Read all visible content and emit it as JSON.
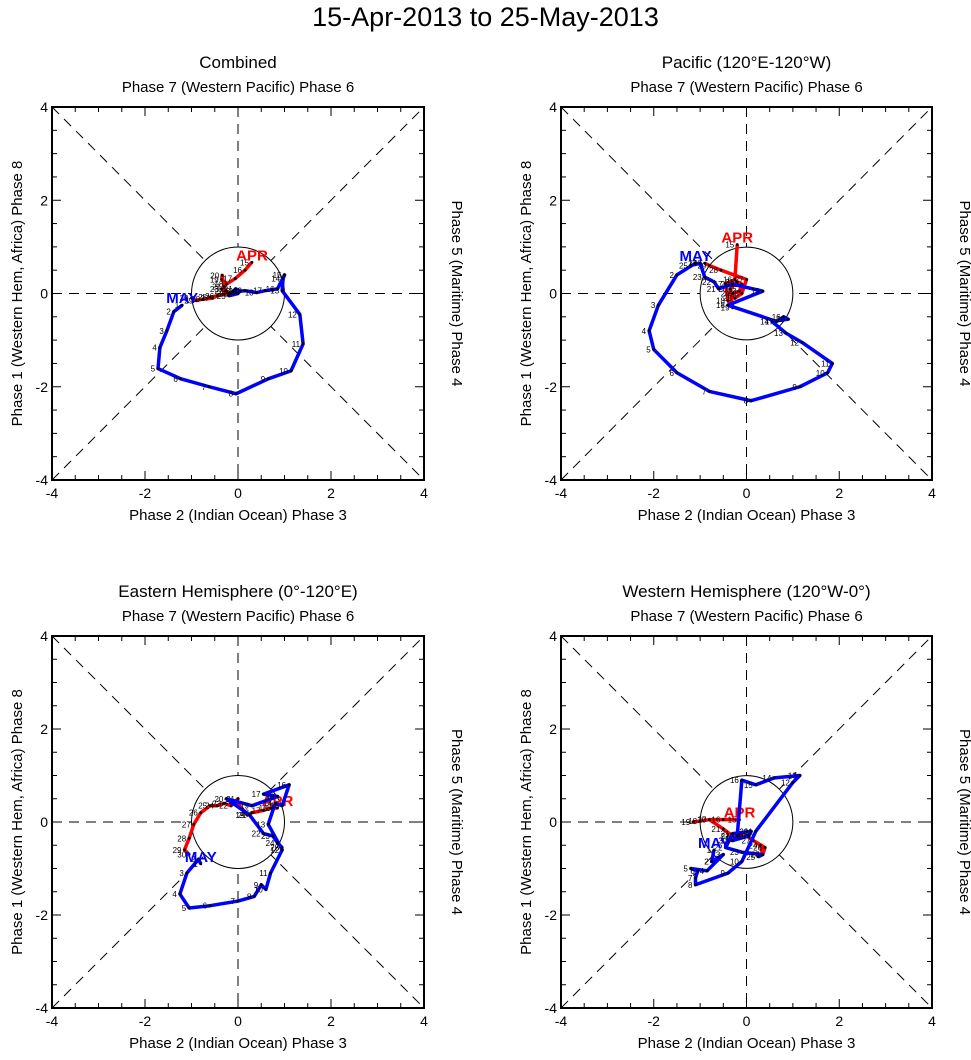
{
  "title": "15-Apr-2013 to 25-May-2013",
  "chart_data": [
    {
      "type": "line",
      "title": "Combined",
      "top_label": "Phase 7 (Western Pacific) Phase 6",
      "bottom_label": "Phase 2 (Indian Ocean) Phase 3",
      "left_label": "Phase 1 (Western Hem, Africa) Phase 8",
      "right_label": "Phase 5 (Maritime) Phase 4",
      "xlim": [
        -4,
        4
      ],
      "ylim": [
        -4,
        4
      ],
      "xticks": [
        "-4",
        "-2",
        "0",
        "2",
        "4"
      ],
      "yticks": [
        "-4",
        "-2",
        "0",
        "2",
        "4"
      ],
      "series": [
        {
          "name": "APR",
          "color": "#ff0000",
          "days": [
            15,
            16,
            17,
            18,
            19,
            20,
            21,
            22,
            23,
            24,
            25,
            26,
            27,
            28,
            29,
            30
          ],
          "x": [
            0.3,
            0.15,
            -0.06,
            -0.25,
            -0.35,
            -0.34,
            -0.3,
            -0.25,
            -0.35,
            -0.2,
            -0.6,
            -0.45,
            -0.55,
            -0.75,
            -0.9,
            -1.0
          ],
          "y": [
            0.67,
            0.5,
            0.32,
            0.2,
            0.3,
            0.39,
            0.15,
            0.05,
            0.1,
            0.0,
            -0.08,
            -0.05,
            -0.1,
            -0.12,
            -0.15,
            -0.1
          ]
        },
        {
          "name": "MAY",
          "color": "#0000ff",
          "days": [
            1,
            2,
            3,
            4,
            5,
            6,
            7,
            8,
            9,
            10,
            11,
            12,
            13,
            14,
            15,
            16,
            17,
            18,
            19,
            20,
            21,
            22,
            23,
            24,
            25
          ],
          "x": [
            -1.2,
            -1.38,
            -1.53,
            -1.68,
            -1.72,
            -1.23,
            -0.62,
            -0.04,
            0.65,
            1.14,
            1.4,
            1.33,
            0.95,
            0.97,
            1.0,
            0.85,
            0.58,
            0.4,
            0.15,
            0.05,
            -0.05,
            -0.15,
            -0.1,
            0.0,
            -0.2
          ],
          "y": [
            -0.25,
            -0.39,
            -0.8,
            -1.16,
            -1.61,
            -1.83,
            -2.0,
            -2.15,
            -1.83,
            -1.66,
            -1.08,
            -0.45,
            0.06,
            0.32,
            0.4,
            0.1,
            0.06,
            0.02,
            0.06,
            0.05,
            0.1,
            0.0,
            0.05,
            0.0,
            -0.05
          ]
        }
      ]
    },
    {
      "type": "line",
      "title": "Pacific (120°E-120°W)",
      "top_label": "Phase 7 (Western Pacific) Phase 6",
      "bottom_label": "Phase 2 (Indian Ocean) Phase 3",
      "left_label": "Phase 1 (Western Hem, Africa) Phase 8",
      "right_label": "Phase 5 (Maritime) Phase 4",
      "xlim": [
        -4,
        4
      ],
      "ylim": [
        -4,
        4
      ],
      "xticks": [
        "-4",
        "-2",
        "0",
        "2",
        "4"
      ],
      "yticks": [
        "-4",
        "-2",
        "0",
        "2",
        "4"
      ],
      "series": [
        {
          "name": "APR",
          "color": "#ff0000",
          "days": [
            15,
            16,
            17,
            18,
            19,
            20,
            21,
            22,
            23,
            24,
            25,
            26,
            27,
            28,
            29,
            30
          ],
          "x": [
            -0.2,
            -0.25,
            -0.45,
            -0.4,
            -0.3,
            -0.35,
            -0.2,
            -0.1,
            -0.15,
            -0.3,
            -0.25,
            -0.1,
            0.0,
            -0.55,
            -0.8,
            -0.9
          ],
          "y": [
            1.05,
            0.3,
            0.2,
            -0.15,
            -0.3,
            0.1,
            0.25,
            0.2,
            0.05,
            0.0,
            -0.1,
            0.0,
            0.3,
            0.5,
            0.6,
            0.65
          ]
        },
        {
          "name": "MAY",
          "color": "#0000ff",
          "days": [
            1,
            2,
            3,
            4,
            5,
            6,
            7,
            8,
            9,
            10,
            11,
            12,
            13,
            14,
            15,
            16,
            17,
            18,
            19,
            20,
            21,
            22,
            23,
            24,
            25
          ],
          "x": [
            -1.1,
            -1.5,
            -1.9,
            -2.1,
            -2.0,
            -1.5,
            -0.8,
            0.1,
            1.15,
            1.75,
            1.85,
            1.2,
            0.85,
            0.55,
            0.9,
            0.8,
            0.65,
            -0.4,
            0.35,
            -0.3,
            -0.6,
            -0.7,
            -0.9,
            -1.0,
            -1.2
          ],
          "y": [
            0.65,
            0.4,
            -0.25,
            -0.8,
            -1.2,
            -1.7,
            -2.1,
            -2.3,
            -2.0,
            -1.7,
            -1.5,
            -1.05,
            -0.85,
            -0.6,
            -0.55,
            -0.5,
            -0.6,
            -0.25,
            0.05,
            0.2,
            0.1,
            0.25,
            0.35,
            0.65,
            0.6
          ]
        }
      ]
    },
    {
      "type": "line",
      "title": "Eastern Hemisphere (0°-120°E)",
      "top_label": "Phase 7 (Western Pacific) Phase 6",
      "bottom_label": "Phase 2 (Indian Ocean) Phase 3",
      "left_label": "Phase 1 (Western Hem, Africa) Phase 8",
      "right_label": "Phase 5 (Maritime) Phase 4",
      "xlim": [
        -4,
        4
      ],
      "ylim": [
        -4,
        4
      ],
      "xticks": [
        "-4",
        "-2",
        "0",
        "2",
        "4"
      ],
      "yticks": [
        "-4",
        "-2",
        "0",
        "2",
        "4"
      ],
      "series": [
        {
          "name": "APR",
          "color": "#ff0000",
          "days": [
            15,
            16,
            17,
            18,
            19,
            20,
            21,
            22,
            23,
            24,
            25,
            26,
            27,
            28,
            29,
            30
          ],
          "x": [
            0.85,
            0.7,
            0.55,
            0.3,
            0.2,
            -0.05,
            0.0,
            -0.15,
            -0.3,
            -0.45,
            -0.6,
            -0.8,
            -0.95,
            -1.05,
            -1.15,
            -1.05
          ],
          "y": [
            0.3,
            0.3,
            0.25,
            0.2,
            0.15,
            0.45,
            0.5,
            0.35,
            0.4,
            0.35,
            0.35,
            0.2,
            -0.05,
            -0.35,
            -0.6,
            -0.7
          ]
        },
        {
          "name": "MAY",
          "color": "#0000ff",
          "days": [
            1,
            2,
            3,
            4,
            5,
            6,
            7,
            8,
            9,
            10,
            11,
            12,
            13,
            14,
            15,
            16,
            17,
            18,
            19,
            20,
            21,
            22,
            23,
            24,
            25
          ],
          "x": [
            -0.8,
            -0.85,
            -1.1,
            -1.25,
            -1.05,
            -0.6,
            0.0,
            0.35,
            0.5,
            0.6,
            0.7,
            0.95,
            0.65,
            0.8,
            0.95,
            1.1,
            0.55,
            0.85,
            0.3,
            -0.25,
            0.25,
            0.55,
            0.75,
            0.85,
            0.95
          ],
          "y": [
            -0.9,
            -0.8,
            -1.1,
            -1.55,
            -1.85,
            -1.8,
            -1.7,
            -1.6,
            -1.35,
            -1.45,
            -1.1,
            -0.6,
            -0.05,
            0.4,
            0.35,
            0.8,
            0.6,
            0.55,
            0.35,
            0.5,
            0.15,
            -0.25,
            -0.3,
            -0.45,
            -0.55
          ]
        }
      ]
    },
    {
      "type": "line",
      "title": "Western Hemisphere (120°W-0°)",
      "top_label": "Phase 7 (Western Pacific) Phase 6",
      "bottom_label": "Phase 2 (Indian Ocean) Phase 3",
      "left_label": "Phase 1 (Western Hem, Africa) Phase 8",
      "right_label": "Phase 5 (Maritime) Phase 4",
      "xlim": [
        -4,
        4
      ],
      "ylim": [
        -4,
        4
      ],
      "xticks": [
        "-4",
        "-2",
        "0",
        "2",
        "4"
      ],
      "yticks": [
        "-4",
        "-2",
        "0",
        "2",
        "4"
      ],
      "series": [
        {
          "name": "APR",
          "color": "#ff0000",
          "days": [
            15,
            16,
            17,
            18,
            19,
            20,
            21,
            22,
            23,
            24,
            25,
            26,
            27,
            28,
            29,
            30
          ],
          "x": [
            -0.15,
            -0.5,
            -0.8,
            -1.0,
            -1.15,
            -0.8,
            -0.5,
            -0.3,
            0.0,
            0.3,
            0.35,
            0.4,
            0.15,
            0.0,
            -0.2,
            -0.35
          ],
          "y": [
            0.05,
            0.05,
            0.05,
            0.02,
            0.0,
            0.05,
            -0.15,
            -0.3,
            -0.3,
            -0.5,
            -0.7,
            -0.55,
            -0.4,
            -0.3,
            -0.35,
            -0.4
          ]
        },
        {
          "name": "MAY",
          "color": "#0000ff",
          "days": [
            1,
            2,
            3,
            4,
            5,
            6,
            7,
            8,
            9,
            10,
            11,
            12,
            13,
            14,
            15,
            16,
            17,
            18,
            19,
            20,
            21,
            22,
            23,
            24,
            25
          ],
          "x": [
            -0.7,
            -0.75,
            -0.5,
            -0.85,
            -1.2,
            -1.05,
            -1.1,
            -1.1,
            -0.4,
            -0.1,
            0.2,
            1.0,
            1.15,
            0.6,
            0.2,
            -0.1,
            -0.2,
            -0.3,
            0.05,
            0.1,
            -0.3,
            -0.45,
            -0.1,
            0.35,
            0.25
          ],
          "y": [
            -0.6,
            -0.85,
            -0.7,
            -1.05,
            -1.0,
            -1.05,
            -1.2,
            -1.35,
            -1.1,
            -0.85,
            -0.2,
            0.85,
            1.0,
            0.95,
            0.8,
            0.9,
            -0.3,
            -0.4,
            -0.3,
            -0.2,
            -0.25,
            -0.55,
            -0.65,
            -0.7,
            -0.75
          ]
        }
      ]
    }
  ]
}
